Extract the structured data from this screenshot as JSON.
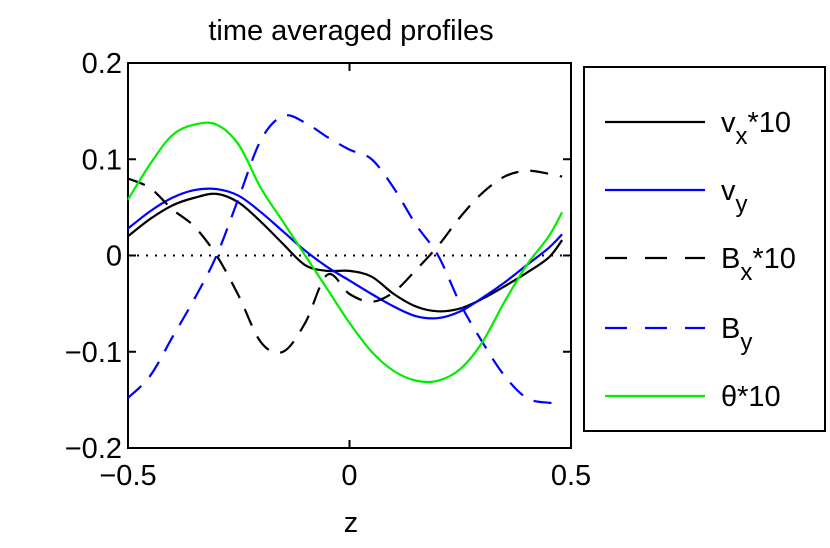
{
  "chart_data": {
    "type": "line",
    "title": "time averaged profiles",
    "xlabel": "z",
    "ylabel": "",
    "xlim": [
      -0.5,
      0.5
    ],
    "ylim": [
      -0.2,
      0.2
    ],
    "xticks": [
      -0.5,
      0,
      0.5
    ],
    "yticks": [
      -0.2,
      -0.1,
      0,
      0.1,
      0.2
    ],
    "xtick_labels": [
      "−0.5",
      "0",
      "0.5"
    ],
    "ytick_labels": [
      "−0.2",
      "−0.1",
      "0",
      "0.1",
      "0.2"
    ],
    "grid": false,
    "legend_position": "right",
    "zero_line": {
      "y": 0,
      "style": "dotted",
      "color": "#000000"
    },
    "series": [
      {
        "name": "v_x*10",
        "legend": {
          "base": "v",
          "sub": "x",
          "suffix": "*10"
        },
        "color": "#000000",
        "dash": "solid",
        "x": [
          -0.5,
          -0.45,
          -0.4,
          -0.35,
          -0.3,
          -0.25,
          -0.2,
          -0.15,
          -0.1,
          -0.05,
          0.0,
          0.05,
          0.1,
          0.15,
          0.2,
          0.25,
          0.3,
          0.35,
          0.4,
          0.45,
          0.48
        ],
        "y": [
          0.02,
          0.038,
          0.052,
          0.06,
          0.064,
          0.055,
          0.035,
          0.012,
          -0.01,
          -0.016,
          -0.016,
          -0.022,
          -0.04,
          -0.053,
          -0.058,
          -0.055,
          -0.045,
          -0.032,
          -0.018,
          -0.002,
          0.016
        ]
      },
      {
        "name": "v_y",
        "legend": {
          "base": "v",
          "sub": "y",
          "suffix": ""
        },
        "color": "#0000ff",
        "dash": "solid",
        "x": [
          -0.5,
          -0.45,
          -0.4,
          -0.35,
          -0.3,
          -0.25,
          -0.2,
          -0.15,
          -0.1,
          -0.05,
          0.0,
          0.05,
          0.1,
          0.15,
          0.2,
          0.25,
          0.3,
          0.35,
          0.4,
          0.45,
          0.48
        ],
        "y": [
          0.028,
          0.046,
          0.06,
          0.068,
          0.069,
          0.062,
          0.045,
          0.025,
          0.005,
          -0.012,
          -0.026,
          -0.04,
          -0.053,
          -0.063,
          -0.065,
          -0.058,
          -0.044,
          -0.028,
          -0.01,
          0.008,
          0.022
        ]
      },
      {
        "name": "B_x*10",
        "legend": {
          "base": "B",
          "sub": "x",
          "suffix": "*10"
        },
        "color": "#000000",
        "dash": "dashed",
        "x": [
          -0.5,
          -0.45,
          -0.4,
          -0.35,
          -0.3,
          -0.25,
          -0.2,
          -0.15,
          -0.1,
          -0.05,
          0.0,
          0.05,
          0.1,
          0.15,
          0.2,
          0.25,
          0.3,
          0.35,
          0.4,
          0.45,
          0.48
        ],
        "y": [
          0.08,
          0.07,
          0.048,
          0.03,
          0.0,
          -0.042,
          -0.09,
          -0.1,
          -0.07,
          -0.02,
          -0.04,
          -0.048,
          -0.038,
          -0.015,
          0.01,
          0.04,
          0.065,
          0.082,
          0.088,
          0.085,
          0.082
        ]
      },
      {
        "name": "B_y",
        "legend": {
          "base": "B",
          "sub": "y",
          "suffix": ""
        },
        "color": "#0000ff",
        "dash": "dashed",
        "x": [
          -0.5,
          -0.45,
          -0.4,
          -0.35,
          -0.3,
          -0.25,
          -0.2,
          -0.15,
          -0.1,
          -0.05,
          0.0,
          0.05,
          0.1,
          0.15,
          0.2,
          0.25,
          0.3,
          0.35,
          0.4,
          0.45,
          0.48
        ],
        "y": [
          -0.148,
          -0.125,
          -0.085,
          -0.045,
          0.0,
          0.06,
          0.12,
          0.145,
          0.138,
          0.123,
          0.11,
          0.1,
          0.07,
          0.032,
          0.0,
          -0.05,
          -0.09,
          -0.125,
          -0.148,
          -0.153,
          -0.152
        ]
      },
      {
        "name": "θ*10",
        "legend": {
          "base": "θ",
          "sub": "",
          "suffix": "*10"
        },
        "color": "#00ee00",
        "dash": "solid",
        "x": [
          -0.5,
          -0.45,
          -0.4,
          -0.35,
          -0.3,
          -0.25,
          -0.2,
          -0.15,
          -0.1,
          -0.05,
          0.0,
          0.05,
          0.1,
          0.15,
          0.2,
          0.25,
          0.3,
          0.35,
          0.4,
          0.45,
          0.48
        ],
        "y": [
          0.058,
          0.095,
          0.125,
          0.136,
          0.136,
          0.115,
          0.07,
          0.035,
          0.0,
          -0.035,
          -0.07,
          -0.1,
          -0.12,
          -0.13,
          -0.13,
          -0.118,
          -0.09,
          -0.048,
          -0.01,
          0.02,
          0.045
        ]
      }
    ]
  }
}
